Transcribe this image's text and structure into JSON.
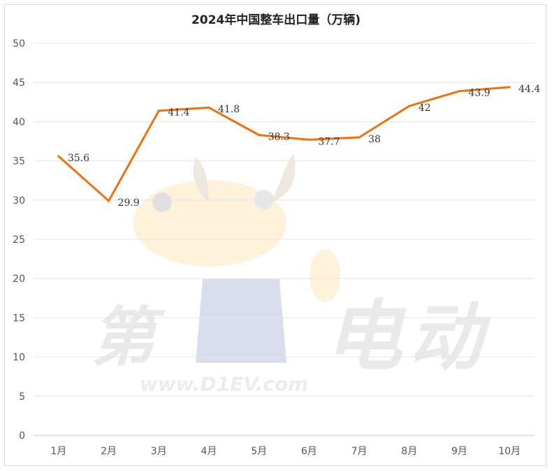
{
  "chart_data": {
    "type": "line",
    "title": "2024年中国整车出口量（万辆)",
    "categories": [
      "1月",
      "2月",
      "3月",
      "4月",
      "5月",
      "6月",
      "7月",
      "8月",
      "9月",
      "10月"
    ],
    "series": [
      {
        "values": [
          35.6,
          29.9,
          41.4,
          41.8,
          38.3,
          37.7,
          38,
          42,
          43.9,
          44.4
        ],
        "color": "#f07010"
      }
    ],
    "data_labels": [
      "35.6",
      "29.9",
      "41.4",
      "41.8",
      "38.3",
      "37.7",
      "38",
      "42",
      "43.9",
      "44.4"
    ],
    "yticks": [
      "0",
      "5",
      "10",
      "15",
      "20",
      "25",
      "30",
      "35",
      "40",
      "45",
      "50"
    ],
    "ylim": [
      0,
      50
    ],
    "grid": true,
    "legend": "none"
  },
  "watermark": {
    "brand_chars": [
      "第",
      "电",
      "动"
    ],
    "url": "www.D1EV.com"
  }
}
